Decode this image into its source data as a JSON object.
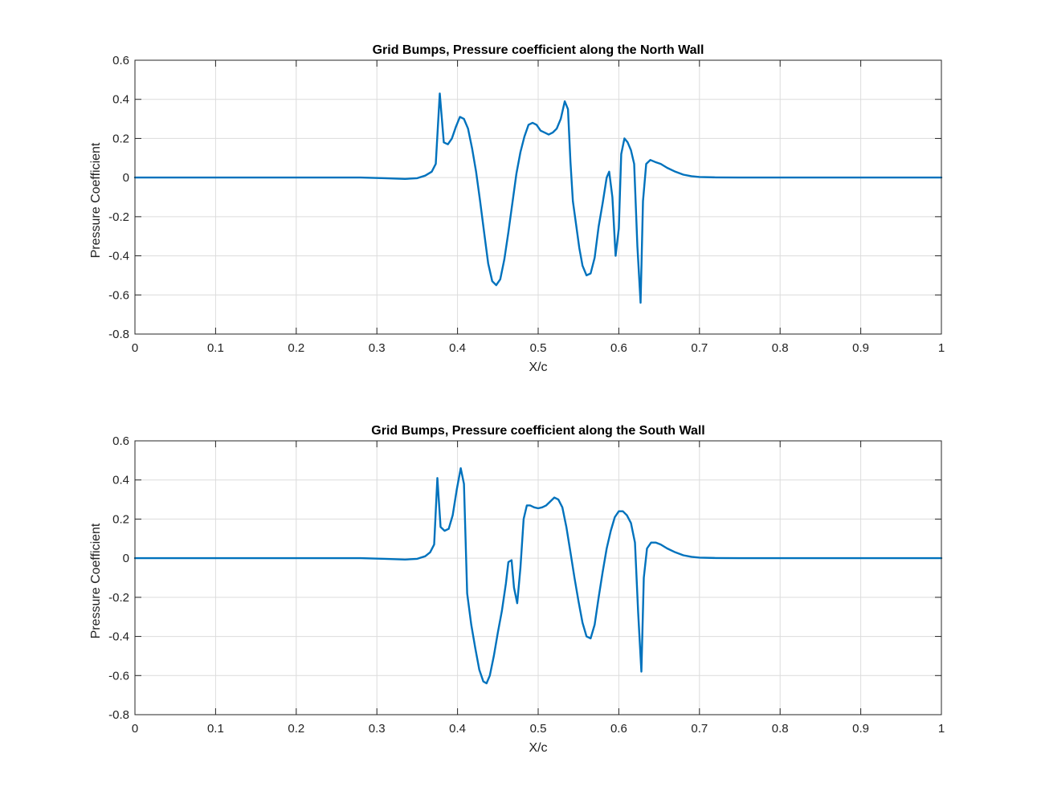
{
  "chart_data": [
    {
      "type": "line",
      "title": "Grid Bumps, Pressure coefficient along the North Wall",
      "xlabel": "X/c",
      "ylabel": "Pressure Coefficient",
      "xlim": [
        0,
        1
      ],
      "ylim": [
        -0.8,
        0.6
      ],
      "xticks": [
        "0",
        "0.1",
        "0.2",
        "0.3",
        "0.4",
        "0.5",
        "0.6",
        "0.7",
        "0.8",
        "0.9",
        "1"
      ],
      "yticks": [
        "-0.8",
        "-0.6",
        "-0.4",
        "-0.2",
        "0",
        "0.2",
        "0.4",
        "0.6"
      ],
      "grid": true,
      "color": "#0072BD",
      "x": [
        0,
        0.1,
        0.2,
        0.28,
        0.31,
        0.335,
        0.35,
        0.36,
        0.368,
        0.373,
        0.378,
        0.383,
        0.388,
        0.393,
        0.398,
        0.403,
        0.408,
        0.413,
        0.418,
        0.423,
        0.428,
        0.433,
        0.438,
        0.443,
        0.448,
        0.453,
        0.458,
        0.463,
        0.468,
        0.473,
        0.478,
        0.483,
        0.488,
        0.493,
        0.498,
        0.503,
        0.508,
        0.513,
        0.518,
        0.523,
        0.528,
        0.533,
        0.537,
        0.54,
        0.543,
        0.547,
        0.551,
        0.555,
        0.56,
        0.565,
        0.57,
        0.575,
        0.58,
        0.585,
        0.588,
        0.592,
        0.596,
        0.6,
        0.603,
        0.607,
        0.611,
        0.615,
        0.619,
        0.623,
        0.627,
        0.63,
        0.634,
        0.639,
        0.645,
        0.652,
        0.66,
        0.67,
        0.68,
        0.69,
        0.7,
        0.72,
        0.75,
        0.8,
        0.9,
        1.0
      ],
      "y": [
        0,
        0,
        0,
        0,
        -0.003,
        -0.007,
        -0.003,
        0.01,
        0.03,
        0.07,
        0.43,
        0.18,
        0.17,
        0.2,
        0.26,
        0.31,
        0.3,
        0.25,
        0.15,
        0.03,
        -0.12,
        -0.28,
        -0.44,
        -0.53,
        -0.55,
        -0.52,
        -0.42,
        -0.28,
        -0.13,
        0.02,
        0.13,
        0.21,
        0.27,
        0.28,
        0.27,
        0.24,
        0.23,
        0.22,
        0.23,
        0.25,
        0.3,
        0.39,
        0.35,
        0.08,
        -0.12,
        -0.24,
        -0.36,
        -0.45,
        -0.5,
        -0.49,
        -0.41,
        -0.25,
        -0.13,
        0.0,
        0.03,
        -0.1,
        -0.4,
        -0.26,
        0.12,
        0.2,
        0.18,
        0.14,
        0.07,
        -0.35,
        -0.64,
        -0.12,
        0.07,
        0.09,
        0.08,
        0.07,
        0.05,
        0.03,
        0.015,
        0.007,
        0.003,
        0.001,
        0,
        0,
        0,
        0
      ]
    },
    {
      "type": "line",
      "title": "Grid Bumps, Pressure coefficient along the South Wall",
      "xlabel": "X/c",
      "ylabel": "Pressure Coefficient",
      "xlim": [
        0,
        1
      ],
      "ylim": [
        -0.8,
        0.6
      ],
      "xticks": [
        "0",
        "0.1",
        "0.2",
        "0.3",
        "0.4",
        "0.5",
        "0.6",
        "0.7",
        "0.8",
        "0.9",
        "1"
      ],
      "yticks": [
        "-0.8",
        "-0.6",
        "-0.4",
        "-0.2",
        "0",
        "0.2",
        "0.4",
        "0.6"
      ],
      "grid": true,
      "color": "#0072BD",
      "x": [
        0,
        0.1,
        0.2,
        0.28,
        0.31,
        0.335,
        0.35,
        0.36,
        0.366,
        0.371,
        0.375,
        0.379,
        0.384,
        0.389,
        0.394,
        0.399,
        0.404,
        0.408,
        0.412,
        0.417,
        0.422,
        0.427,
        0.432,
        0.436,
        0.44,
        0.445,
        0.45,
        0.455,
        0.46,
        0.463,
        0.467,
        0.47,
        0.474,
        0.478,
        0.482,
        0.486,
        0.49,
        0.495,
        0.5,
        0.505,
        0.51,
        0.515,
        0.52,
        0.525,
        0.53,
        0.535,
        0.54,
        0.545,
        0.55,
        0.555,
        0.56,
        0.565,
        0.57,
        0.575,
        0.58,
        0.585,
        0.59,
        0.595,
        0.6,
        0.605,
        0.61,
        0.615,
        0.62,
        0.624,
        0.628,
        0.631,
        0.635,
        0.64,
        0.646,
        0.652,
        0.66,
        0.67,
        0.68,
        0.69,
        0.7,
        0.72,
        0.75,
        0.8,
        0.9,
        1.0
      ],
      "y": [
        0,
        0,
        0,
        0,
        -0.003,
        -0.007,
        -0.003,
        0.01,
        0.03,
        0.07,
        0.41,
        0.16,
        0.14,
        0.15,
        0.22,
        0.35,
        0.46,
        0.38,
        -0.18,
        -0.34,
        -0.46,
        -0.57,
        -0.63,
        -0.64,
        -0.6,
        -0.5,
        -0.38,
        -0.27,
        -0.13,
        -0.02,
        -0.01,
        -0.15,
        -0.23,
        -0.05,
        0.2,
        0.27,
        0.27,
        0.26,
        0.255,
        0.26,
        0.27,
        0.29,
        0.31,
        0.3,
        0.26,
        0.16,
        0.03,
        -0.1,
        -0.22,
        -0.33,
        -0.4,
        -0.41,
        -0.34,
        -0.2,
        -0.07,
        0.05,
        0.14,
        0.21,
        0.24,
        0.24,
        0.22,
        0.18,
        0.08,
        -0.28,
        -0.58,
        -0.1,
        0.05,
        0.08,
        0.08,
        0.07,
        0.05,
        0.03,
        0.015,
        0.007,
        0.003,
        0.001,
        0,
        0,
        0,
        0
      ]
    }
  ]
}
